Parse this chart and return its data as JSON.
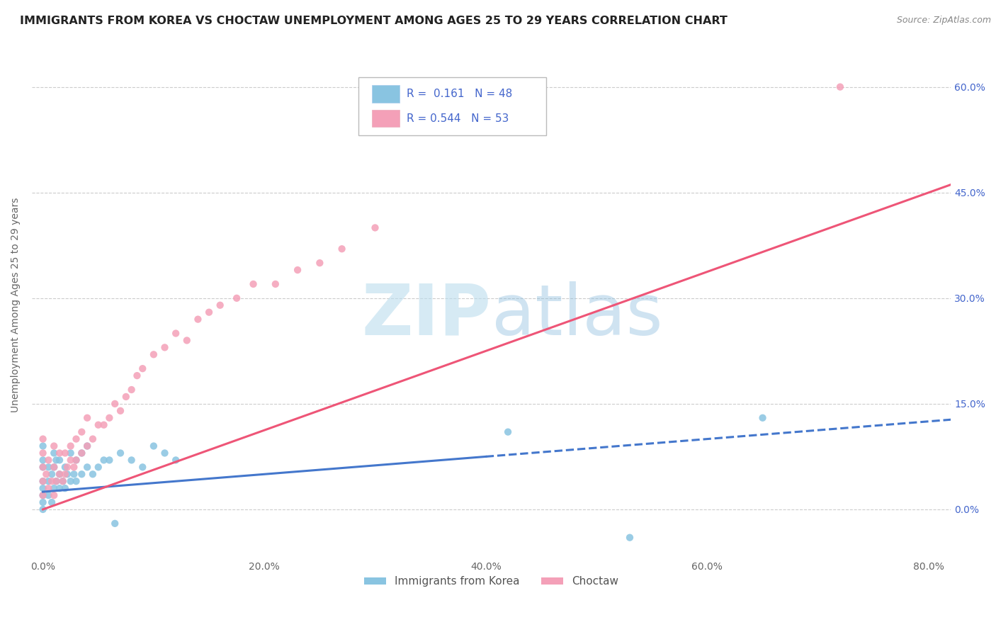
{
  "title": "IMMIGRANTS FROM KOREA VS CHOCTAW UNEMPLOYMENT AMONG AGES 25 TO 29 YEARS CORRELATION CHART",
  "source_text": "Source: ZipAtlas.com",
  "ylabel": "Unemployment Among Ages 25 to 29 years",
  "xlim": [
    -0.01,
    0.82
  ],
  "ylim": [
    -0.07,
    0.65
  ],
  "xticks": [
    0.0,
    0.2,
    0.4,
    0.6,
    0.8
  ],
  "xticklabels": [
    "0.0%",
    "20.0%",
    "40.0%",
    "60.0%",
    "80.0%"
  ],
  "right_ytick_positions": [
    0.0,
    0.15,
    0.3,
    0.45,
    0.6
  ],
  "right_ytick_labels": [
    "0.0%",
    "15.0%",
    "30.0%",
    "45.0%",
    "60.0%"
  ],
  "korea_color": "#89C4E1",
  "choctaw_color": "#F4A0B8",
  "korea_line_color": "#4477CC",
  "choctaw_line_color": "#EE5577",
  "legend_text_color": "#4466CC",
  "korea_R": 0.161,
  "korea_N": 48,
  "choctaw_R": 0.544,
  "choctaw_N": 53,
  "watermark_color": "#BBDDEE",
  "background_color": "#FFFFFF",
  "grid_color": "#CCCCCC",
  "title_color": "#222222",
  "title_fontsize": 11.5,
  "ylabel_fontsize": 10,
  "tick_fontsize": 10,
  "korea_line_intercept": 0.025,
  "korea_line_slope": 0.125,
  "choctaw_line_intercept": 0.0,
  "choctaw_line_slope": 0.5625,
  "korea_scatter_x": [
    0.0,
    0.0,
    0.0,
    0.0,
    0.0,
    0.0,
    0.0,
    0.0,
    0.005,
    0.005,
    0.005,
    0.008,
    0.008,
    0.01,
    0.01,
    0.01,
    0.012,
    0.012,
    0.015,
    0.015,
    0.015,
    0.018,
    0.02,
    0.02,
    0.022,
    0.025,
    0.025,
    0.028,
    0.03,
    0.03,
    0.035,
    0.035,
    0.04,
    0.04,
    0.045,
    0.05,
    0.055,
    0.06,
    0.065,
    0.07,
    0.08,
    0.09,
    0.1,
    0.11,
    0.12,
    0.42,
    0.53,
    0.65
  ],
  "korea_scatter_y": [
    0.0,
    0.01,
    0.02,
    0.03,
    0.04,
    0.06,
    0.07,
    0.09,
    0.02,
    0.04,
    0.06,
    0.01,
    0.05,
    0.03,
    0.06,
    0.08,
    0.04,
    0.07,
    0.03,
    0.05,
    0.07,
    0.04,
    0.03,
    0.06,
    0.05,
    0.04,
    0.08,
    0.05,
    0.04,
    0.07,
    0.05,
    0.08,
    0.06,
    0.09,
    0.05,
    0.06,
    0.07,
    0.07,
    -0.02,
    0.08,
    0.07,
    0.06,
    0.09,
    0.08,
    0.07,
    0.11,
    -0.04,
    0.13
  ],
  "choctaw_scatter_x": [
    0.0,
    0.0,
    0.0,
    0.0,
    0.0,
    0.003,
    0.005,
    0.005,
    0.008,
    0.01,
    0.01,
    0.01,
    0.012,
    0.015,
    0.015,
    0.018,
    0.02,
    0.02,
    0.022,
    0.025,
    0.025,
    0.028,
    0.03,
    0.03,
    0.035,
    0.035,
    0.04,
    0.04,
    0.045,
    0.05,
    0.055,
    0.06,
    0.065,
    0.07,
    0.075,
    0.08,
    0.085,
    0.09,
    0.1,
    0.11,
    0.12,
    0.13,
    0.14,
    0.15,
    0.16,
    0.175,
    0.19,
    0.21,
    0.23,
    0.25,
    0.27,
    0.3,
    0.72
  ],
  "choctaw_scatter_y": [
    0.02,
    0.04,
    0.06,
    0.08,
    0.1,
    0.05,
    0.03,
    0.07,
    0.04,
    0.02,
    0.06,
    0.09,
    0.04,
    0.05,
    0.08,
    0.04,
    0.05,
    0.08,
    0.06,
    0.07,
    0.09,
    0.06,
    0.07,
    0.1,
    0.08,
    0.11,
    0.09,
    0.13,
    0.1,
    0.12,
    0.12,
    0.13,
    0.15,
    0.14,
    0.16,
    0.17,
    0.19,
    0.2,
    0.22,
    0.23,
    0.25,
    0.24,
    0.27,
    0.28,
    0.29,
    0.3,
    0.32,
    0.32,
    0.34,
    0.35,
    0.37,
    0.4,
    0.6
  ]
}
